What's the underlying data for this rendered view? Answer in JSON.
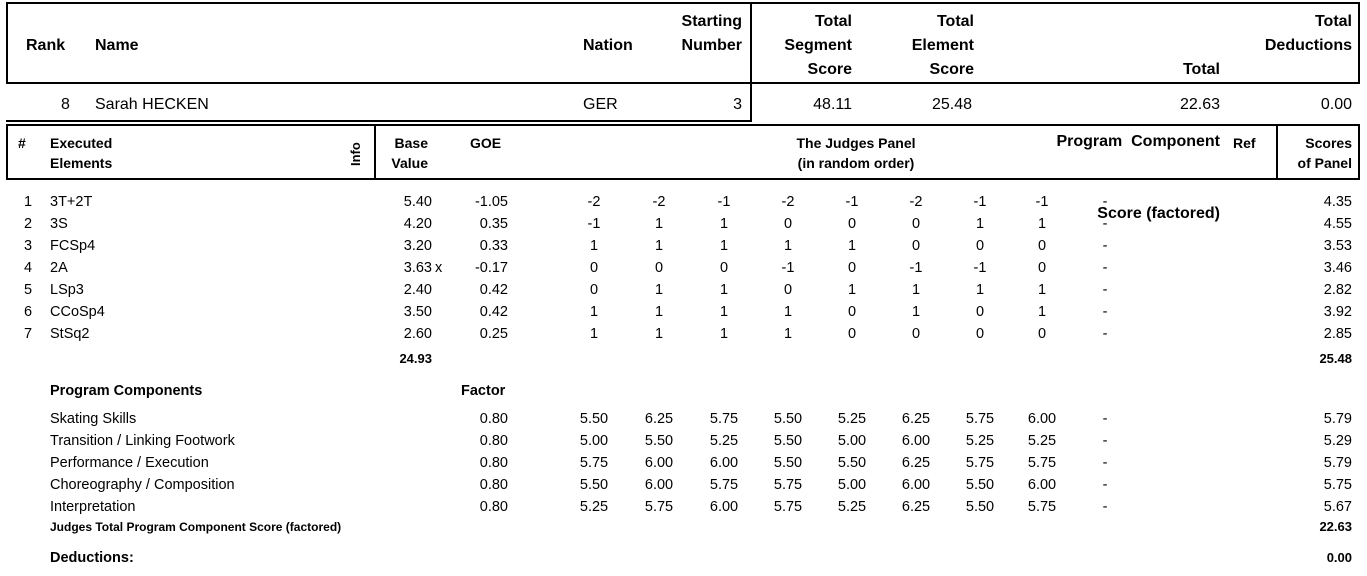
{
  "header": {
    "rank": "Rank",
    "name": "Name",
    "nation": "Nation",
    "starting_number": [
      "Starting",
      "Number"
    ],
    "tss": [
      "Total",
      "Segment",
      "Score"
    ],
    "tes": [
      "Total",
      "Element",
      "Score"
    ],
    "pcs": [
      "Total",
      "Program  Component",
      "Score (factored)"
    ],
    "ded": [
      "Total",
      "Deductions"
    ]
  },
  "skater": {
    "rank": "8",
    "name": "Sarah HECKEN",
    "nation": "GER",
    "starting_number": "3",
    "tss": "48.11",
    "tes": "25.48",
    "pcs": "22.63",
    "ded": "0.00"
  },
  "elements_header": {
    "num": "#",
    "executed": [
      "Executed",
      "Elements"
    ],
    "info": "Info",
    "base": [
      "Base",
      "Value"
    ],
    "goe": "GOE",
    "panel": [
      "The Judges Panel",
      "(in random order)"
    ],
    "ref": "Ref",
    "scores": [
      "Scores",
      "of Panel"
    ]
  },
  "elements": [
    {
      "num": "1",
      "name": "3T+2T",
      "base": "5.40",
      "info": "",
      "goe": "-1.05",
      "judges": [
        "-2",
        "-2",
        "-1",
        "-2",
        "-1",
        "-2",
        "-1",
        "-1",
        "-"
      ],
      "score": "4.35"
    },
    {
      "num": "2",
      "name": "3S",
      "base": "4.20",
      "info": "",
      "goe": "0.35",
      "judges": [
        "-1",
        "1",
        "1",
        "0",
        "0",
        "0",
        "1",
        "1",
        "-"
      ],
      "score": "4.55"
    },
    {
      "num": "3",
      "name": "FCSp4",
      "base": "3.20",
      "info": "",
      "goe": "0.33",
      "judges": [
        "1",
        "1",
        "1",
        "1",
        "1",
        "0",
        "0",
        "0",
        "-"
      ],
      "score": "3.53"
    },
    {
      "num": "4",
      "name": "2A",
      "base": "3.63",
      "info": "x",
      "goe": "-0.17",
      "judges": [
        "0",
        "0",
        "0",
        "-1",
        "0",
        "-1",
        "-1",
        "0",
        "-"
      ],
      "score": "3.46"
    },
    {
      "num": "5",
      "name": "LSp3",
      "base": "2.40",
      "info": "",
      "goe": "0.42",
      "judges": [
        "0",
        "1",
        "1",
        "0",
        "1",
        "1",
        "1",
        "1",
        "-"
      ],
      "score": "2.82"
    },
    {
      "num": "6",
      "name": "CCoSp4",
      "base": "3.50",
      "info": "",
      "goe": "0.42",
      "judges": [
        "1",
        "1",
        "1",
        "1",
        "0",
        "1",
        "0",
        "1",
        "-"
      ],
      "score": "3.92"
    },
    {
      "num": "7",
      "name": "StSq2",
      "base": "2.60",
      "info": "",
      "goe": "0.25",
      "judges": [
        "1",
        "1",
        "1",
        "1",
        "0",
        "0",
        "0",
        "0",
        "-"
      ],
      "score": "2.85"
    }
  ],
  "elements_totals": {
    "base": "24.93",
    "score": "25.48"
  },
  "components_header": {
    "title": "Program Components",
    "factor": "Factor"
  },
  "components": [
    {
      "name": "Skating Skills",
      "factor": "0.80",
      "judges": [
        "5.50",
        "6.25",
        "5.75",
        "5.50",
        "5.25",
        "6.25",
        "5.75",
        "6.00",
        "-"
      ],
      "score": "5.79"
    },
    {
      "name": "Transition / Linking Footwork",
      "factor": "0.80",
      "judges": [
        "5.00",
        "5.50",
        "5.25",
        "5.50",
        "5.00",
        "6.00",
        "5.25",
        "5.25",
        "-"
      ],
      "score": "5.29"
    },
    {
      "name": "Performance / Execution",
      "factor": "0.80",
      "judges": [
        "5.75",
        "6.00",
        "6.00",
        "5.50",
        "5.50",
        "6.25",
        "5.75",
        "5.75",
        "-"
      ],
      "score": "5.79"
    },
    {
      "name": "Choreography / Composition",
      "factor": "0.80",
      "judges": [
        "5.50",
        "6.00",
        "5.75",
        "5.75",
        "5.00",
        "6.00",
        "5.50",
        "6.00",
        "-"
      ],
      "score": "5.75"
    },
    {
      "name": "Interpretation",
      "factor": "0.80",
      "judges": [
        "5.25",
        "5.75",
        "6.00",
        "5.75",
        "5.25",
        "6.25",
        "5.50",
        "5.75",
        "-"
      ],
      "score": "5.67"
    }
  ],
  "components_total": {
    "label": "Judges Total Program Component Score (factored)",
    "value": "22.63"
  },
  "deductions": {
    "label": "Deductions:",
    "value": "0.00"
  }
}
